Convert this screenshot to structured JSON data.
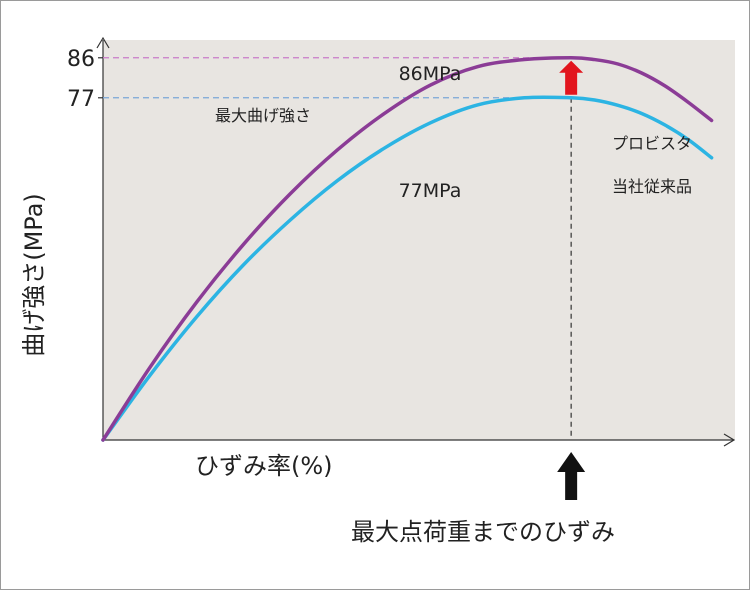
{
  "chart_data": {
    "type": "line",
    "title": "",
    "xlabel": "ひずみ率(%)",
    "ylabel": "曲げ強さ(MPa)",
    "yticks": [
      "86",
      "77"
    ],
    "ylim": [
      0,
      90
    ],
    "xlim": [
      0,
      1.35
    ],
    "grid": false,
    "peak_x": 1.0,
    "series": [
      {
        "name": "プロビスタ",
        "color": "#8b3c96",
        "x": [
          0,
          0.1,
          0.2,
          0.3,
          0.4,
          0.5,
          0.6,
          0.7,
          0.8,
          0.9,
          1.0,
          1.05,
          1.1,
          1.15,
          1.2,
          1.25,
          1.3
        ],
        "y": [
          0,
          16.3,
          31.0,
          44.0,
          55.4,
          65.2,
          73.4,
          79.9,
          84.0,
          85.6,
          86.0,
          85.6,
          84.6,
          82.6,
          79.7,
          76.0,
          71.9
        ]
      },
      {
        "name": "当社従来品",
        "color": "#2cb4e3",
        "x": [
          0,
          0.1,
          0.2,
          0.3,
          0.4,
          0.5,
          0.6,
          0.7,
          0.8,
          0.9,
          1.0,
          1.05,
          1.1,
          1.15,
          1.2,
          1.25,
          1.3
        ],
        "y": [
          0,
          14.5,
          27.7,
          39.4,
          49.5,
          58.3,
          65.6,
          71.4,
          75.4,
          77.0,
          77.0,
          76.5,
          75.3,
          73.5,
          70.9,
          67.6,
          63.5
        ]
      }
    ],
    "annotations": {
      "upper_value": "86MPa",
      "lower_value": "77MPa",
      "strength_label": "最大曲げ強さ",
      "bottom_note": "最大点荷重までのひずみ"
    }
  }
}
